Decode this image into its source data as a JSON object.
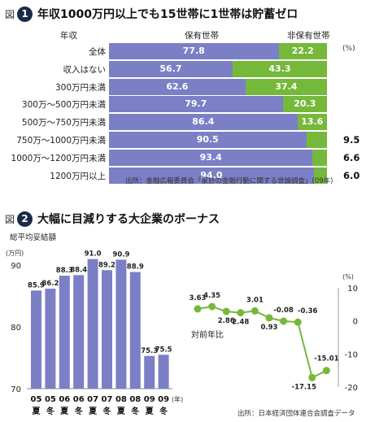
{
  "chart_data": [
    {
      "type": "bar",
      "figure_prefix": "図",
      "figure_number": "1",
      "title": "年収1000万円以上でも15世帯に1世帯は貯蓄ゼロ",
      "row_header": "年収",
      "unit": "(%)",
      "categories": [
        "全体",
        "収入はない",
        "300万円未満",
        "300万〜500万円未満",
        "500万〜750万円未満",
        "750万〜1000万円未満",
        "1000万〜1200万円未満",
        "1200万円以上"
      ],
      "series": [
        {
          "name": "保有世帯",
          "values": [
            77.8,
            56.7,
            62.6,
            79.7,
            86.4,
            90.5,
            93.4,
            94.0
          ],
          "labels": [
            "77.8",
            "56.7",
            "62.6",
            "79.7",
            "86.4",
            "90.5",
            "93.4",
            "94.0"
          ]
        },
        {
          "name": "非保有世帯",
          "values": [
            22.2,
            43.3,
            37.4,
            20.3,
            13.6,
            9.5,
            6.6,
            6.0
          ],
          "labels": [
            "22.2",
            "43.3",
            "37.4",
            "20.3",
            "13.6",
            "9.5",
            "6.6",
            "6.0"
          ]
        }
      ],
      "xlim": [
        0,
        100
      ],
      "source": "出所：金融広報委員会「家計の金融行動に関する世論調査」(09年)"
    },
    {
      "type": "bar",
      "figure_prefix": "図",
      "figure_number": "2",
      "title": "大幅に目減りする大企業のボーナス",
      "ylabel": "総平均妥結額",
      "yunit": "(万円)",
      "ylim": [
        70,
        92
      ],
      "yticks": [
        70,
        80,
        90
      ],
      "categories": [
        {
          "year": "05",
          "season": "夏"
        },
        {
          "year": "05",
          "season": "冬"
        },
        {
          "year": "06",
          "season": "夏"
        },
        {
          "year": "06",
          "season": "冬"
        },
        {
          "year": "07",
          "season": "夏"
        },
        {
          "year": "07",
          "season": "冬"
        },
        {
          "year": "08",
          "season": "夏"
        },
        {
          "year": "08",
          "season": "冬"
        },
        {
          "year": "09",
          "season": "夏"
        },
        {
          "year": "09",
          "season": "冬"
        }
      ],
      "xunit": "(年)",
      "values": [
        85.9,
        86.2,
        88.3,
        88.4,
        91.0,
        89.2,
        90.9,
        88.9,
        75.3,
        75.5
      ],
      "labels": [
        "85.9",
        "86.2",
        "88.3",
        "88.4",
        "91.0",
        "89.2",
        "90.9",
        "88.9",
        "75.3",
        "75.5"
      ],
      "color": "#7b7fc6"
    },
    {
      "type": "line",
      "label": "対前年比",
      "yunit": "(%)",
      "ylim": [
        -20,
        10
      ],
      "yticks": [
        10,
        0,
        -10,
        -20
      ],
      "values": [
        3.63,
        4.35,
        2.86,
        2.48,
        3.01,
        0.93,
        -0.08,
        -0.36,
        -17.15,
        -15.01
      ],
      "labels": [
        "3.63",
        "4.35",
        "2.86",
        "2.48",
        "3.01",
        "0.93",
        "-0.08",
        "-0.36",
        "-17.15",
        "-15.01"
      ],
      "color": "#76b83a",
      "source": "出所：日本経済団体連合会調査データ"
    }
  ]
}
